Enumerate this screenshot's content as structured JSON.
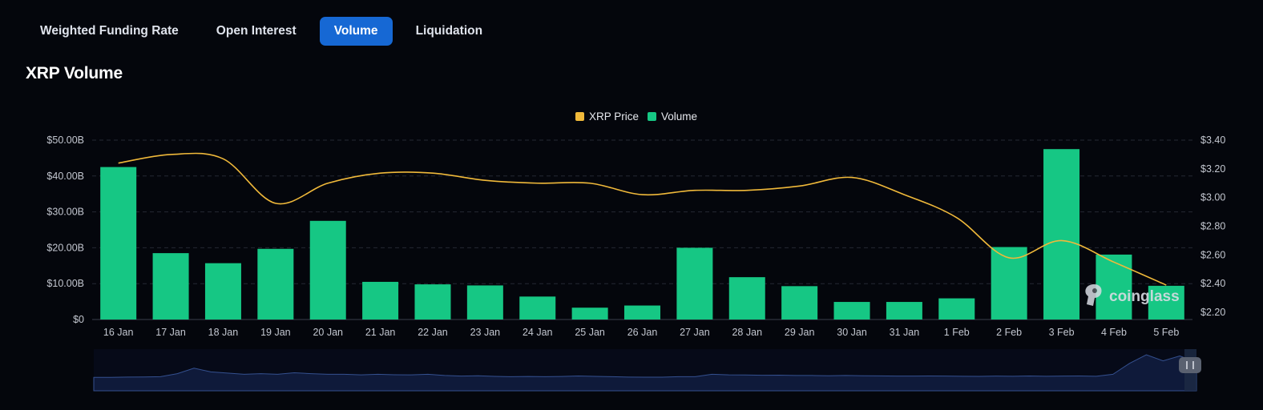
{
  "tabs": [
    {
      "label": "Weighted Funding Rate",
      "active": false
    },
    {
      "label": "Open Interest",
      "active": false
    },
    {
      "label": "Volume",
      "active": true
    },
    {
      "label": "Liquidation",
      "active": false
    }
  ],
  "title": "XRP Volume",
  "watermark": "coinglass",
  "colors": {
    "volume": "#16c784",
    "price": "#f0b93a",
    "active_tab": "#1668d4",
    "background": "#04060c"
  },
  "chart_data": {
    "type": "bar",
    "legend": [
      {
        "name": "XRP Price",
        "color": "#f0b93a"
      },
      {
        "name": "Volume",
        "color": "#16c784"
      }
    ],
    "legend_position": "top-center",
    "grid": true,
    "categories": [
      "16 Jan",
      "17 Jan",
      "18 Jan",
      "19 Jan",
      "20 Jan",
      "21 Jan",
      "22 Jan",
      "23 Jan",
      "24 Jan",
      "25 Jan",
      "26 Jan",
      "27 Jan",
      "28 Jan",
      "29 Jan",
      "30 Jan",
      "31 Jan",
      "1 Feb",
      "2 Feb",
      "3 Feb",
      "4 Feb",
      "5 Feb"
    ],
    "series": [
      {
        "name": "Volume",
        "type": "bar",
        "axis": "left",
        "values": [
          42.5,
          18.5,
          15.7,
          19.7,
          27.5,
          10.5,
          9.8,
          9.5,
          6.4,
          3.3,
          3.9,
          20.0,
          11.8,
          9.3,
          4.9,
          4.9,
          5.9,
          20.2,
          47.5,
          18.1,
          9.4
        ]
      },
      {
        "name": "XRP Price",
        "type": "line",
        "axis": "right",
        "values": [
          3.24,
          3.3,
          3.27,
          2.96,
          3.1,
          3.17,
          3.17,
          3.12,
          3.1,
          3.1,
          3.02,
          3.05,
          3.05,
          3.08,
          3.14,
          3.02,
          2.86,
          2.58,
          2.7,
          2.55,
          2.39
        ]
      }
    ],
    "y_left": {
      "ticks": [
        "$0",
        "$10.00B",
        "$20.00B",
        "$30.00B",
        "$40.00B",
        "$50.00B"
      ],
      "range": [
        0,
        50
      ]
    },
    "y_right": {
      "ticks": [
        "$2.20",
        "$2.40",
        "$2.60",
        "$2.80",
        "$3.00",
        "$3.20",
        "$3.40"
      ],
      "range": [
        2.15,
        3.4
      ]
    },
    "navigator": {
      "values": [
        0.25,
        0.25,
        0.27,
        0.28,
        0.3,
        0.55,
        1.0,
        0.7,
        0.6,
        0.5,
        0.55,
        0.5,
        0.62,
        0.55,
        0.5,
        0.5,
        0.45,
        0.5,
        0.46,
        0.45,
        0.5,
        0.4,
        0.35,
        0.38,
        0.33,
        0.3,
        0.32,
        0.3,
        0.32,
        0.36,
        0.33,
        0.3,
        0.27,
        0.26,
        0.26,
        0.3,
        0.3,
        0.5,
        0.45,
        0.44,
        0.42,
        0.43,
        0.4,
        0.4,
        0.38,
        0.4,
        0.38,
        0.37,
        0.35,
        0.35,
        0.36,
        0.35,
        0.34,
        0.33,
        0.35,
        0.34,
        0.36,
        0.34,
        0.35,
        0.36,
        0.34,
        0.5,
        1.4,
        2.1,
        1.6,
        2.0,
        1.5
      ]
    }
  }
}
